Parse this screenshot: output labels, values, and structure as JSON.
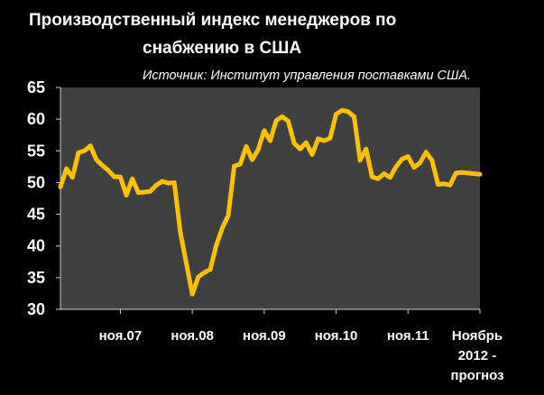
{
  "title_line1": "Производственный индекс менеджеров по",
  "title_line2": "снабжению в США",
  "source": "Источник: Институт управления поставками США.",
  "colors": {
    "background": "#000000",
    "plot_area": "#404040",
    "line": "#FFC000",
    "text": "#FFFFFF"
  },
  "chart_data": {
    "type": "line",
    "ylim": [
      30,
      65
    ],
    "yticks": [
      30,
      35,
      40,
      45,
      50,
      55,
      60,
      65
    ],
    "grid": false,
    "x_tick_labels": [
      {
        "lines": [
          "ноя.07"
        ],
        "index": 10
      },
      {
        "lines": [
          "ноя.08"
        ],
        "index": 22
      },
      {
        "lines": [
          "ноя.09"
        ],
        "index": 34
      },
      {
        "lines": [
          "ноя.10"
        ],
        "index": 46
      },
      {
        "lines": [
          "ноя.11"
        ],
        "index": 58
      },
      {
        "lines": [
          "Ноябрь",
          "2012 -",
          "прогноз"
        ],
        "index": 70
      }
    ],
    "x_min_index": 0,
    "x_max_index": 70,
    "series": [
      {
        "values": [
          49.3,
          52.2,
          50.8,
          54.7,
          55.0,
          55.8,
          53.6,
          52.7,
          51.9,
          50.9,
          50.9,
          48.0,
          50.6,
          48.4,
          48.5,
          48.6,
          49.6,
          50.2,
          49.9,
          50.0,
          42.2,
          37.3,
          32.4,
          35.1,
          35.8,
          36.3,
          40.1,
          42.8,
          44.8,
          52.6,
          52.9,
          55.7,
          53.6,
          55.2,
          58.2,
          56.6,
          59.8,
          60.4,
          59.7,
          56.2,
          55.3,
          56.3,
          54.4,
          56.9,
          56.6,
          57.0,
          60.8,
          61.4,
          61.2,
          60.4,
          53.5,
          55.3,
          50.9,
          50.6,
          51.4,
          50.8,
          52.5,
          53.7,
          54.1,
          52.4,
          53.1,
          54.8,
          53.5,
          49.7,
          49.8,
          49.6,
          51.5,
          51.6,
          51.5,
          51.4,
          51.3
        ]
      }
    ]
  }
}
